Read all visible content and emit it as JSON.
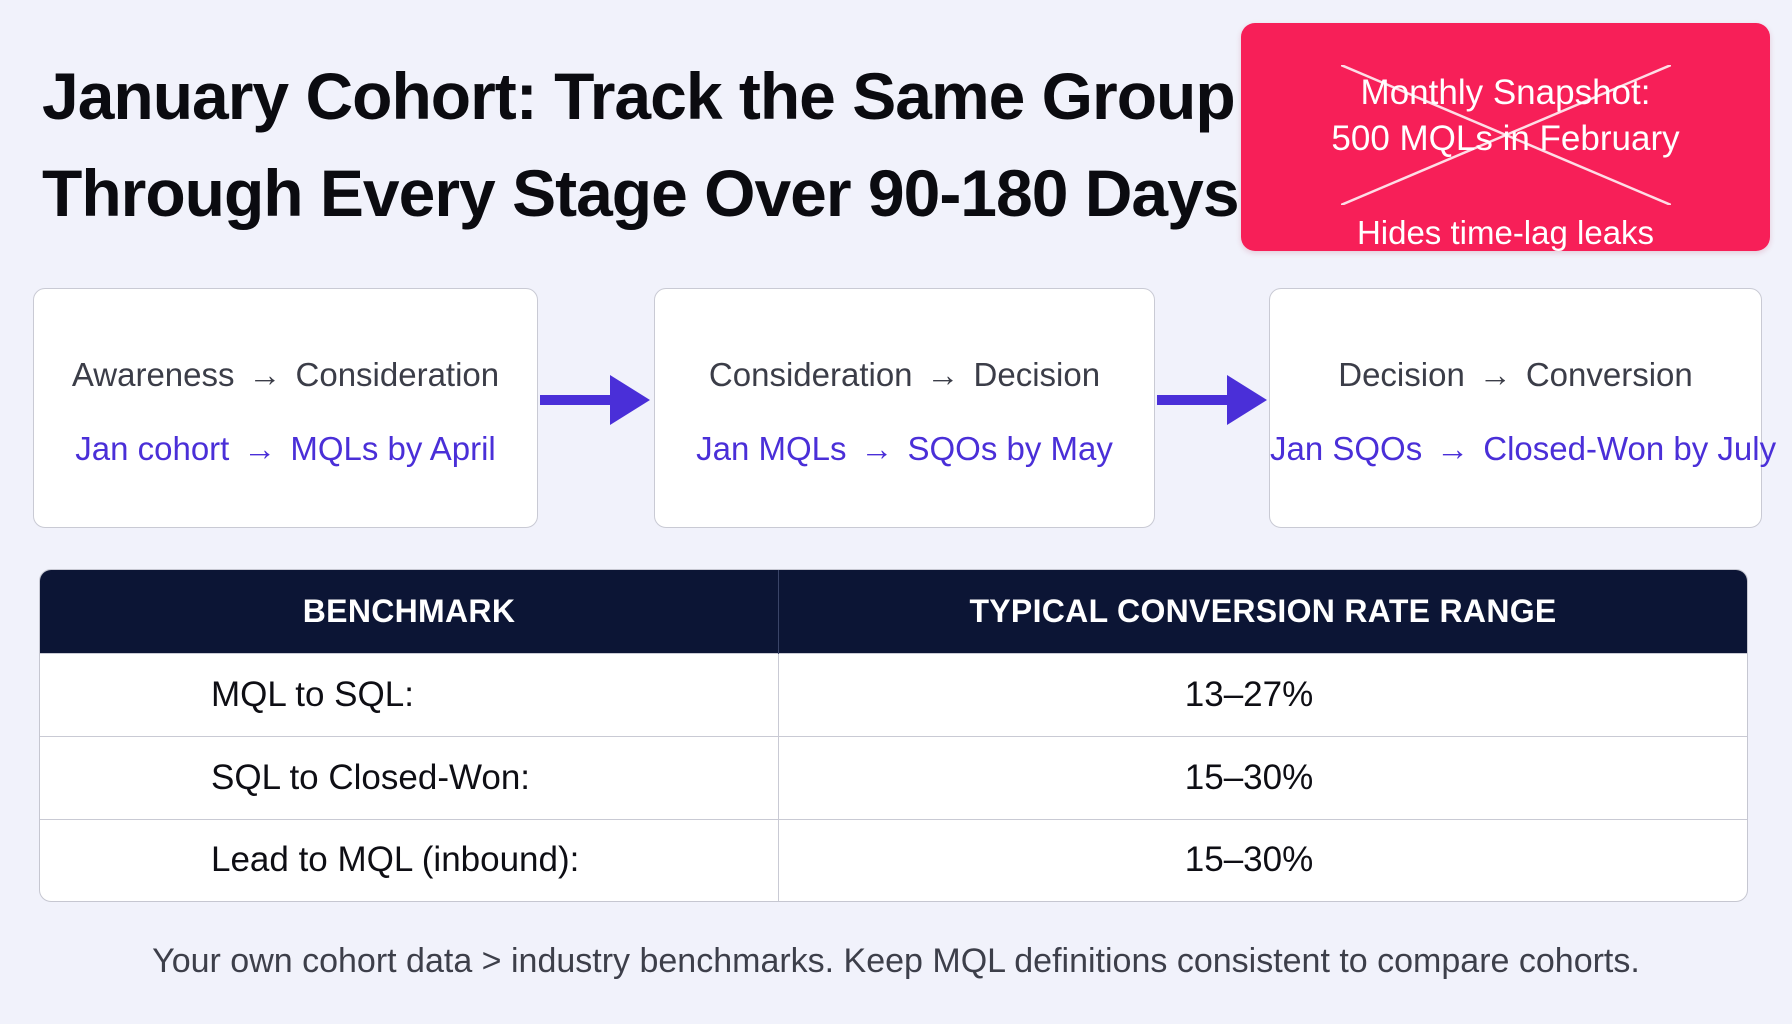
{
  "title": {
    "line1": "January Cohort: Track the Same Group",
    "line2": "Through Every Stage Over 90-180 Days"
  },
  "snapshot": {
    "line1": "Monthly Snapshot:",
    "line2": "500 MQLs in February",
    "note": "Hides time-lag leaks",
    "background_color": "#f71f58",
    "crossed_out": true
  },
  "stages": [
    {
      "from": "Awareness",
      "to": "Consideration",
      "detail_from": "Jan cohort",
      "detail_to": "MQLs by April"
    },
    {
      "from": "Consideration",
      "to": "Decision",
      "detail_from": "Jan MQLs",
      "detail_to": "SQOs by May"
    },
    {
      "from": "Decision",
      "to": "Conversion",
      "detail_from": "Jan SQOs",
      "detail_to": "Closed-Won by July"
    }
  ],
  "arrow_glyph": "→",
  "accent_color": "#4a2fd8",
  "benchmark_table": {
    "headers": [
      "BENCHMARK",
      "TYPICAL CONVERSION RATE RANGE"
    ],
    "rows": [
      {
        "name": "MQL to SQL:",
        "rate": "13–27%"
      },
      {
        "name": "SQL to Closed-Won:",
        "rate": "15–30%"
      },
      {
        "name": "Lead to MQL (inbound):",
        "rate": "15–30%"
      }
    ],
    "header_color": "#0c1535"
  },
  "footnote": "Your own cohort data > industry benchmarks. Keep MQL definitions consistent to compare cohorts."
}
